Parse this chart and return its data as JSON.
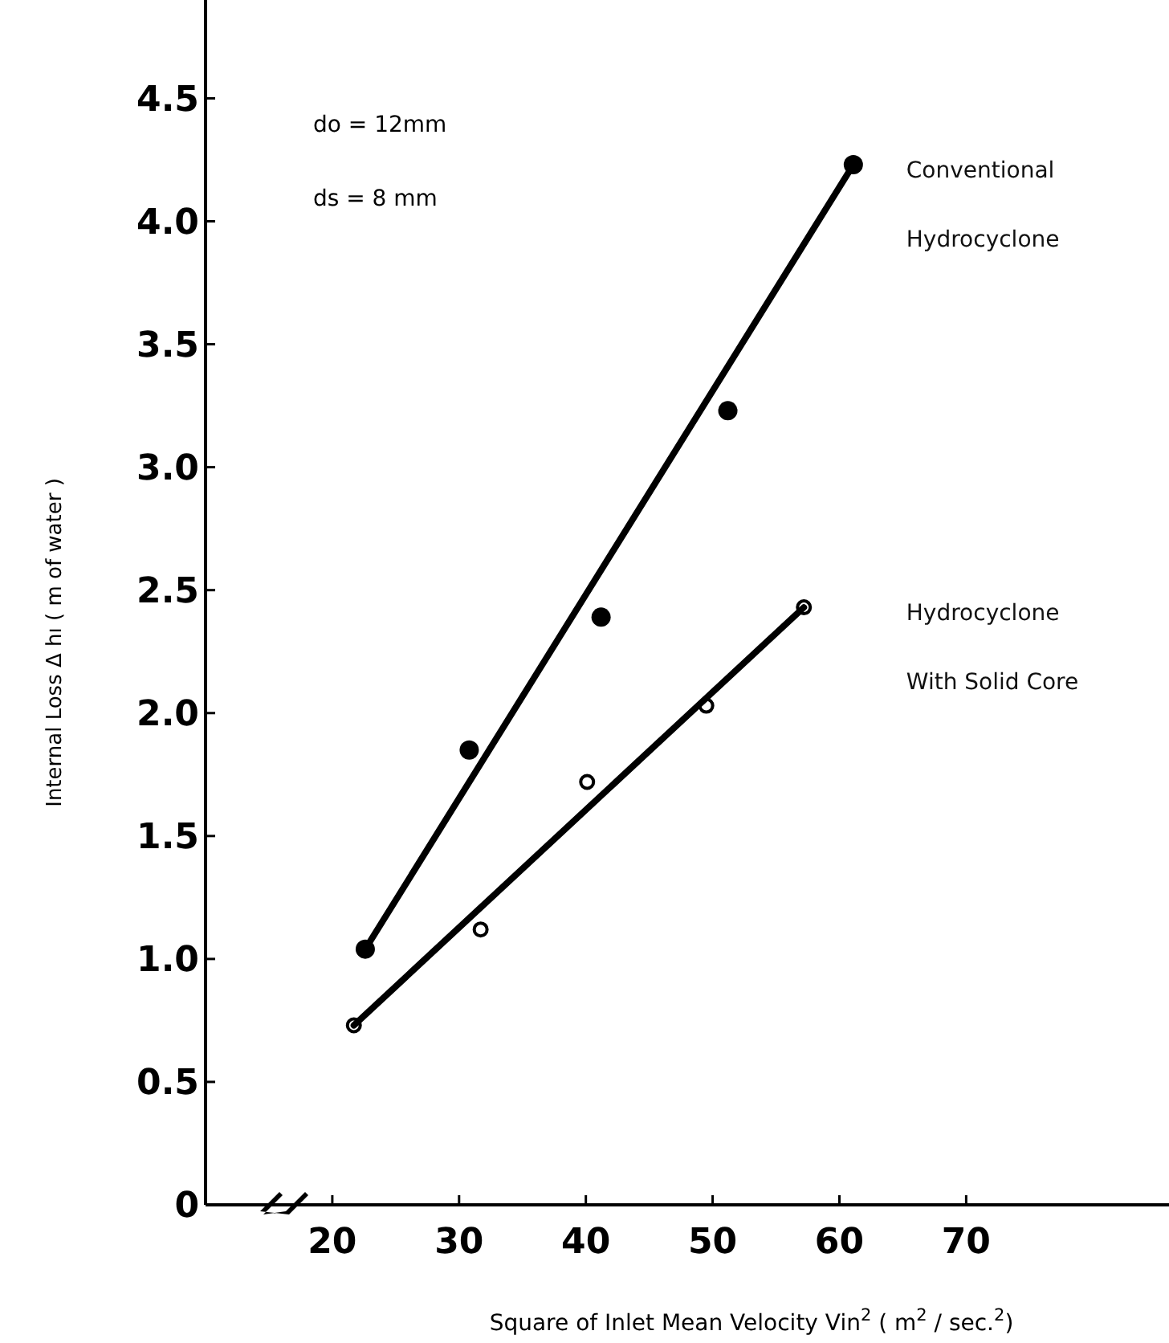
{
  "chart_data": {
    "type": "scatter",
    "xlabel": "Square of Inlet Mean Velocity Vin$^{2}$ ( m$^{2}$ / sec.$^{2}$)",
    "ylabel": "Internal Loss  Δ hı ( m of water )",
    "annotations": [
      "do = 12mm",
      "ds = 8 mm"
    ],
    "xlim": [
      10,
      86
    ],
    "xticks": [
      20,
      30,
      40,
      50,
      60,
      70
    ],
    "ylim": [
      0,
      4.9
    ],
    "yticks": [
      0,
      0.5,
      {
        "value": 1,
        "label": "1.0"
      },
      1.5,
      {
        "value": 2,
        "label": "2.0"
      },
      2.5,
      {
        "value": 3,
        "label": "3.0"
      },
      3.5,
      {
        "value": 4,
        "label": "4.0"
      },
      4.5
    ],
    "series": [
      {
        "marker": "circle",
        "color": "#000000",
        "x": [
          22.6,
          30.8,
          41.2,
          51.2,
          61.1
        ],
        "values": [
          1.04,
          1.85,
          2.39,
          3.23,
          4.23
        ]
      },
      {
        "marker": "circle",
        "color": "#ffffff",
        "x": [
          21.7,
          31.7,
          40.1,
          49.5,
          57.2
        ],
        "values": [
          0.73,
          1.12,
          1.72,
          2.03,
          2.43
        ]
      },
      {
        "type": "line",
        "name": "Conventional Hydrocyclone",
        "color": "#000000",
        "x": [
          22.6,
          61.1
        ],
        "values": [
          1.04,
          4.23
        ]
      },
      {
        "type": "line",
        "name": "Hydrocyclone With Solid Core",
        "color": "#000000",
        "x": [
          21.7,
          57.2
        ],
        "values": [
          0.73,
          2.43
        ]
      }
    ]
  }
}
